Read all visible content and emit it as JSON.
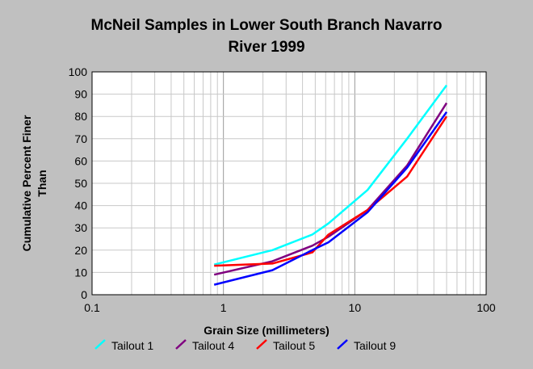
{
  "chart_data": {
    "type": "line",
    "title_lines": [
      "McNeil Samples in Lower South Branch Navarro",
      "River 1999"
    ],
    "xlabel": "Grain Size (millimeters)",
    "ylabel_lines": [
      "Cumulative Percent Finer",
      "Than"
    ],
    "x_scale": "log",
    "xlim": [
      0.1,
      100
    ],
    "ylim": [
      0,
      100
    ],
    "x_ticks": [
      0.1,
      1,
      10,
      100
    ],
    "x_tick_labels": [
      "0.1",
      "1",
      "10",
      "100"
    ],
    "y_ticks": [
      0,
      10,
      20,
      30,
      40,
      50,
      60,
      70,
      80,
      90,
      100
    ],
    "y_tick_labels": [
      "0",
      "10",
      "20",
      "30",
      "40",
      "50",
      "60",
      "70",
      "80",
      "90",
      "100"
    ],
    "grid": true,
    "legend_position": "bottom",
    "series": [
      {
        "name": "Tailout 1",
        "color": "#00ffff",
        "x": [
          0.85,
          2.36,
          4.75,
          6.3,
          12.5,
          25,
          50
        ],
        "y": [
          13.5,
          20,
          27,
          32,
          47,
          70,
          94
        ]
      },
      {
        "name": "Tailout 4",
        "color": "#800080",
        "x": [
          0.85,
          2.36,
          4.75,
          6.3,
          12.5,
          25,
          50
        ],
        "y": [
          9,
          15,
          22,
          26,
          38,
          58,
          86
        ]
      },
      {
        "name": "Tailout 5",
        "color": "#ff0000",
        "x": [
          0.85,
          2.36,
          4.75,
          6.3,
          12.5,
          25,
          50
        ],
        "y": [
          13,
          14,
          19,
          27,
          38,
          53,
          80
        ]
      },
      {
        "name": "Tailout 9",
        "color": "#0000ff",
        "x": [
          0.85,
          2.36,
          4.75,
          6.3,
          12.5,
          25,
          50
        ],
        "y": [
          4.5,
          11,
          20,
          23.5,
          37,
          57,
          82
        ]
      }
    ]
  }
}
